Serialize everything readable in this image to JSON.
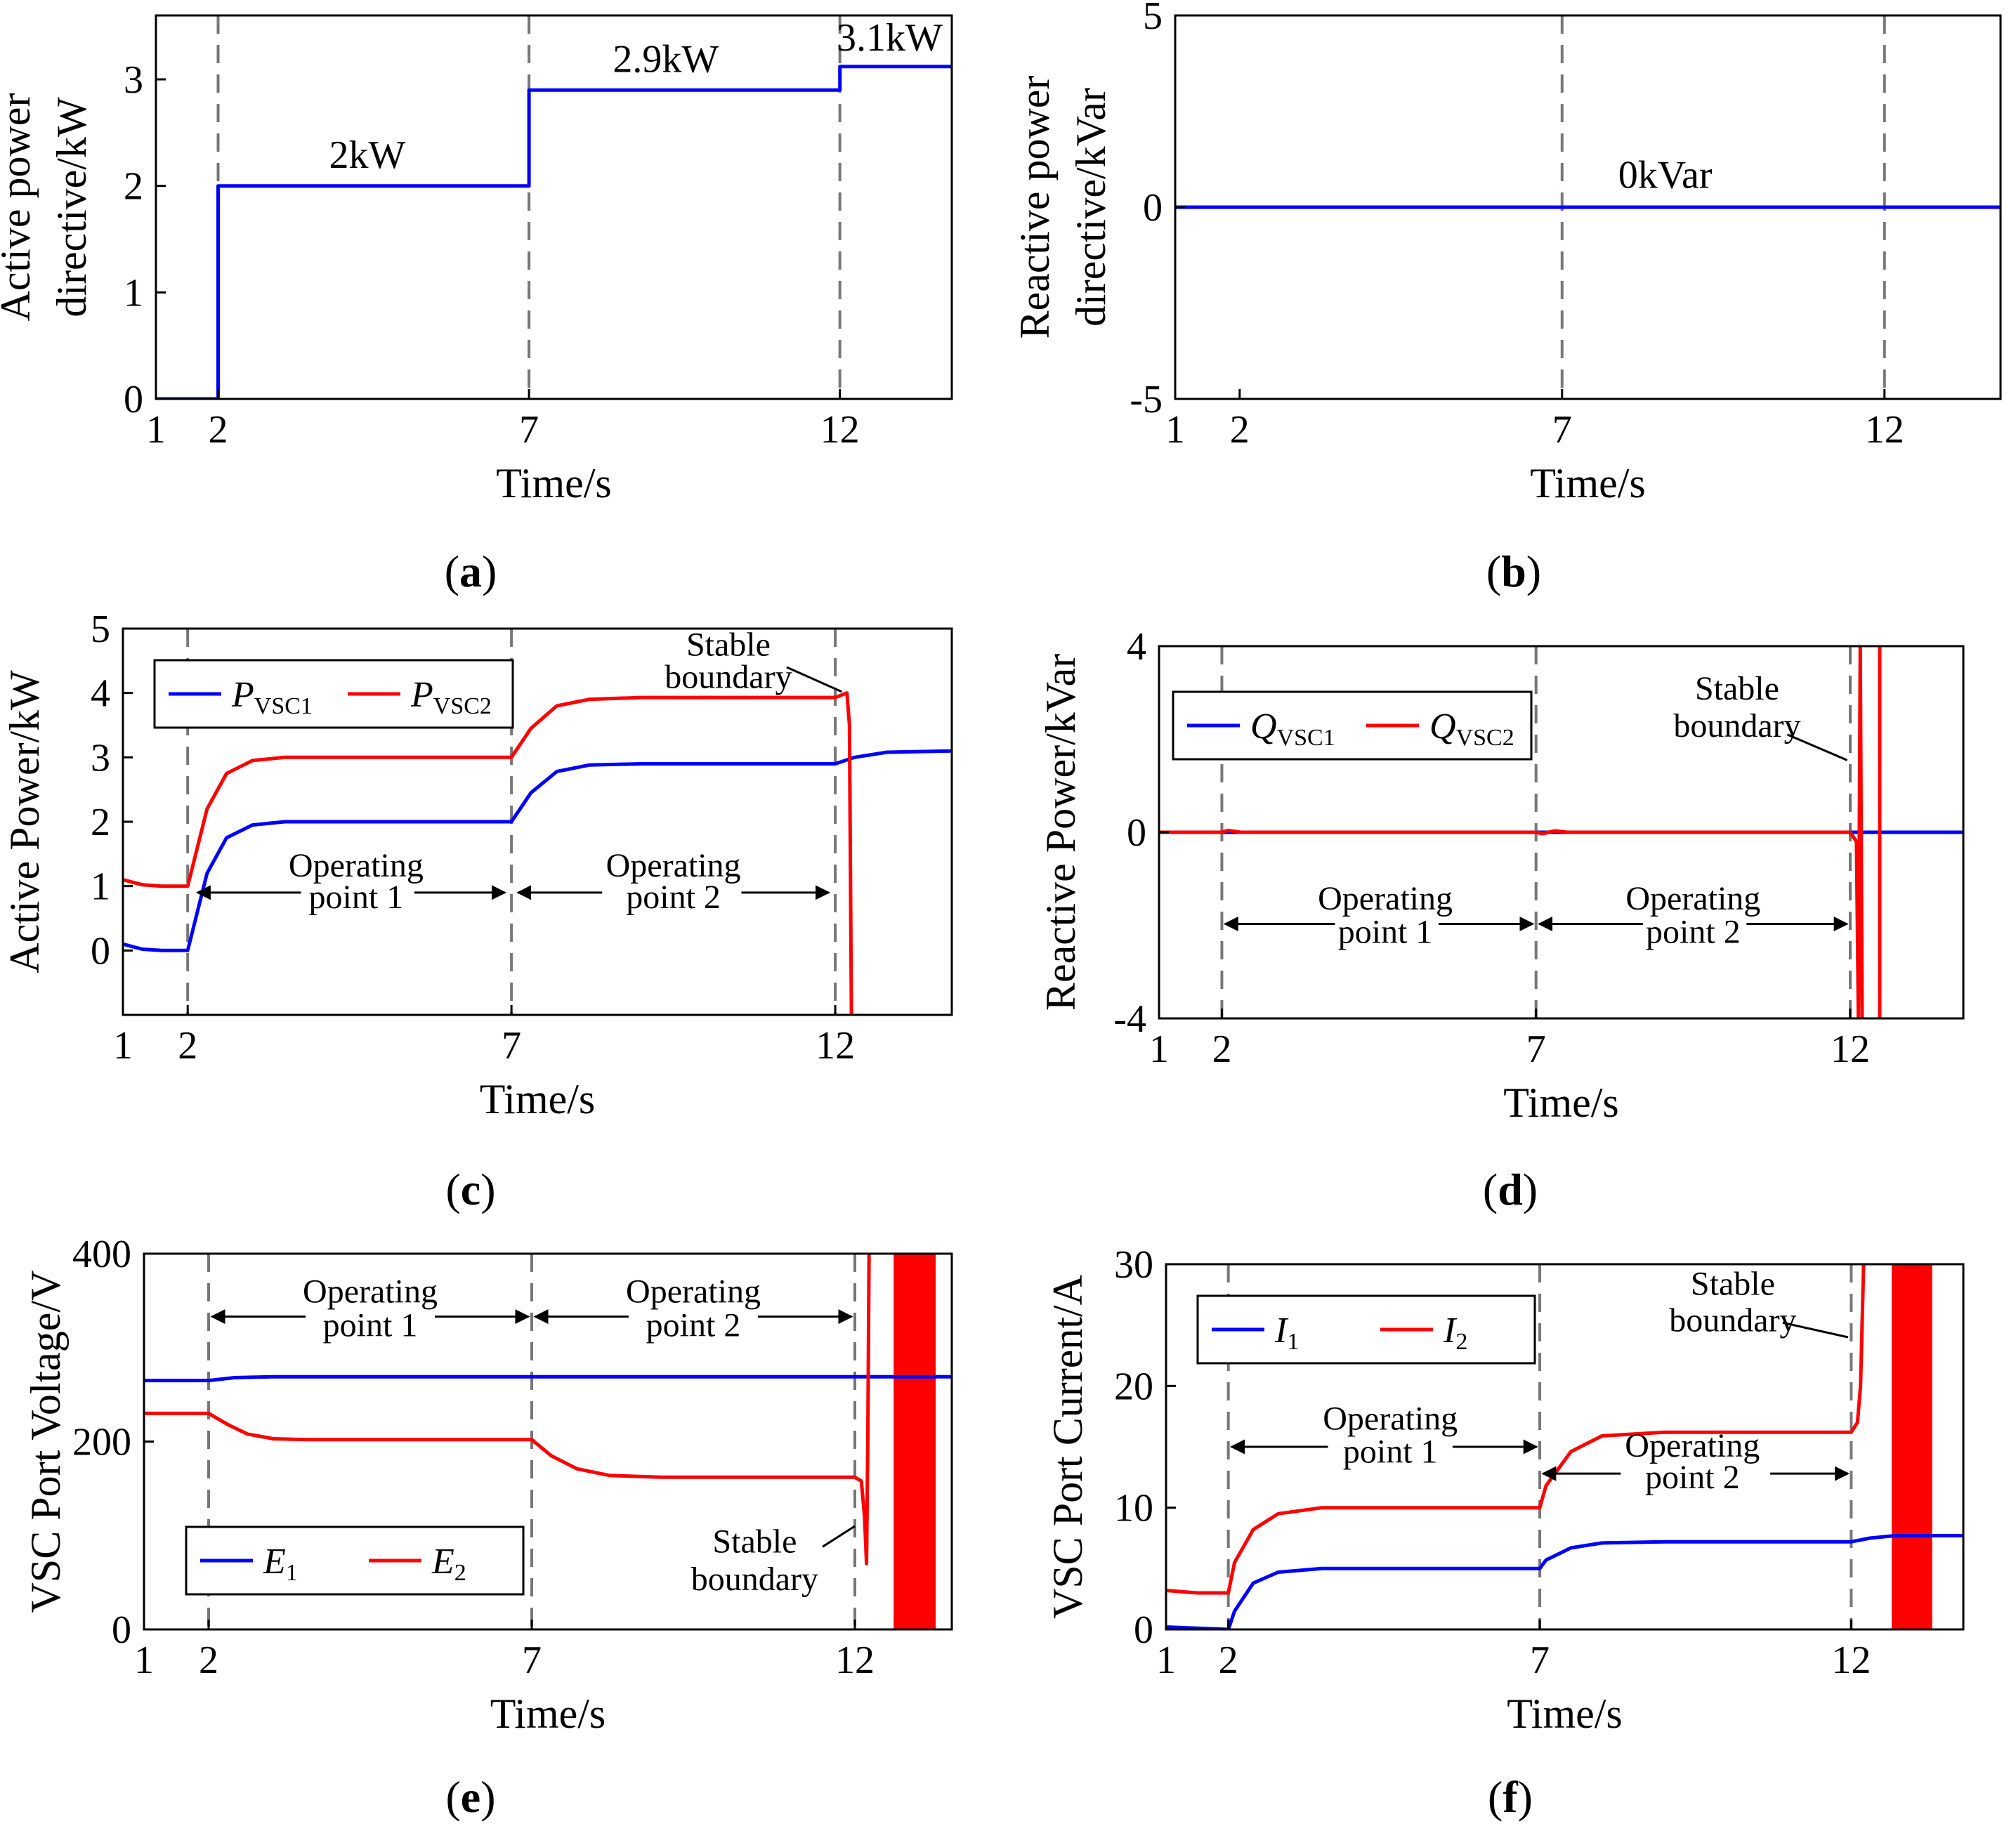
{
  "colors": {
    "blue": "#0000ff",
    "red": "#ff0000",
    "vline": "#777777"
  },
  "chart_data": [
    {
      "id": "a",
      "type": "line",
      "caption": "a",
      "xlabel": "Time/s",
      "ylabel_lines": [
        "Active power",
        "directive/kW"
      ],
      "xlim": [
        1,
        13.8
      ],
      "ylim": [
        0,
        3.6
      ],
      "xticks": [
        1,
        2,
        7,
        12
      ],
      "yticks": [
        0,
        1,
        2,
        3
      ],
      "vlines": [
        2,
        7,
        12
      ],
      "series": [
        {
          "name": "P_ref",
          "color": "blue",
          "points": [
            [
              1,
              0
            ],
            [
              2,
              0
            ],
            [
              2,
              2
            ],
            [
              7,
              2
            ],
            [
              7,
              2.9
            ],
            [
              12,
              2.9
            ],
            [
              12,
              3.12
            ],
            [
              13.8,
              3.12
            ]
          ]
        }
      ],
      "annotations": [
        {
          "text": "2kW",
          "x": 4.4,
          "y": 2.17
        },
        {
          "text": "2.9kW",
          "x": 9.2,
          "y": 3.07
        },
        {
          "text": "3.1kW",
          "x": 12.8,
          "y": 3.27
        }
      ]
    },
    {
      "id": "b",
      "type": "line",
      "caption": "b",
      "xlabel": "Time/s",
      "ylabel_lines": [
        "Reactive power",
        "directive/kVar"
      ],
      "xlim": [
        1,
        13.8
      ],
      "ylim": [
        -5,
        5
      ],
      "xticks": [
        1,
        2,
        7,
        12
      ],
      "yticks": [
        -5,
        0,
        5
      ],
      "vlines": [
        7,
        12
      ],
      "series": [
        {
          "name": "Q_ref",
          "color": "blue",
          "points": [
            [
              1,
              0
            ],
            [
              13.8,
              0
            ]
          ]
        }
      ],
      "annotations": [
        {
          "text": "0kVar",
          "x": 8.6,
          "y": 0.5
        }
      ]
    },
    {
      "id": "c",
      "type": "line",
      "caption": "c",
      "xlabel": "Time/s",
      "ylabel_lines": [
        "Active Power/kW"
      ],
      "xlim": [
        1,
        13.8
      ],
      "ylim": [
        -1,
        5
      ],
      "xticks": [
        1,
        2,
        7,
        12
      ],
      "yticks": [
        0,
        1,
        2,
        3,
        4,
        5
      ],
      "vlines": [
        2,
        7,
        12
      ],
      "legend": {
        "position": "top-left",
        "entries": [
          {
            "base": "P",
            "sub": "VSC1",
            "color": "blue"
          },
          {
            "base": "P",
            "sub": "VSC2",
            "color": "red"
          }
        ]
      },
      "series": [
        {
          "name": "P_VSC1",
          "color": "blue",
          "points": [
            [
              1,
              0.1
            ],
            [
              1.3,
              0.02
            ],
            [
              1.6,
              0
            ],
            [
              2,
              0
            ],
            [
              2.3,
              1.2
            ],
            [
              2.6,
              1.75
            ],
            [
              3,
              1.95
            ],
            [
              3.5,
              2
            ],
            [
              7,
              2
            ],
            [
              7.3,
              2.45
            ],
            [
              7.7,
              2.78
            ],
            [
              8.2,
              2.88
            ],
            [
              9,
              2.9
            ],
            [
              12,
              2.9
            ],
            [
              12.3,
              3.0
            ],
            [
              12.8,
              3.08
            ],
            [
              13.8,
              3.1
            ]
          ]
        },
        {
          "name": "P_VSC2",
          "color": "red",
          "points": [
            [
              1,
              1.1
            ],
            [
              1.3,
              1.02
            ],
            [
              1.6,
              1
            ],
            [
              2,
              1
            ],
            [
              2.3,
              2.2
            ],
            [
              2.6,
              2.75
            ],
            [
              3,
              2.95
            ],
            [
              3.5,
              3
            ],
            [
              7,
              3
            ],
            [
              7.3,
              3.45
            ],
            [
              7.7,
              3.8
            ],
            [
              8.2,
              3.9
            ],
            [
              9,
              3.93
            ],
            [
              12,
              3.93
            ],
            [
              12.18,
              4.0
            ],
            [
              12.22,
              3.5
            ],
            [
              12.25,
              -1.0
            ]
          ]
        }
      ],
      "annotations": [
        {
          "text": "Operating",
          "x": 4.6,
          "y": 1.15
        },
        {
          "text": "point 1",
          "x": 4.6,
          "y": 0.66
        },
        {
          "text": "Operating",
          "x": 9.5,
          "y": 1.15
        },
        {
          "text": "point 2",
          "x": 9.5,
          "y": 0.66
        },
        {
          "text": "Stable",
          "x": 10.35,
          "y": 4.58
        },
        {
          "text": "boundary",
          "x": 10.35,
          "y": 4.08
        }
      ],
      "arrows": [
        {
          "x1": 3.75,
          "x2": 2.15,
          "y": 0.9
        },
        {
          "x1": 5.5,
          "x2": 6.9,
          "y": 0.9
        },
        {
          "x1": 8.4,
          "x2": 7.1,
          "y": 0.9
        },
        {
          "x1": 10.55,
          "x2": 11.9,
          "y": 0.9
        }
      ],
      "pointers": [
        {
          "x1": 11.25,
          "y1": 4.4,
          "x2": 12.1,
          "y2": 4.02
        }
      ]
    },
    {
      "id": "d",
      "type": "line",
      "caption": "d",
      "xlabel": "Time/s",
      "ylabel_lines": [
        "Reactive Power/kVar"
      ],
      "xlim": [
        1,
        13.8
      ],
      "ylim": [
        -4,
        4
      ],
      "xticks": [
        1,
        2,
        7,
        12
      ],
      "yticks": [
        -4,
        0,
        4
      ],
      "vlines": [
        2,
        7,
        12
      ],
      "legend": {
        "position": "top-left",
        "entries": [
          {
            "base": "Q",
            "sub": "VSC1",
            "color": "blue"
          },
          {
            "base": "Q",
            "sub": "VSC2",
            "color": "red"
          }
        ]
      },
      "series": [
        {
          "name": "Q_VSC1",
          "color": "blue",
          "points": [
            [
              1,
              0
            ],
            [
              13.8,
              0
            ]
          ]
        },
        {
          "name": "Q_VSC2",
          "color": "red",
          "points": [
            [
              1,
              0
            ],
            [
              2,
              0
            ],
            [
              2.1,
              0.04
            ],
            [
              2.3,
              0
            ],
            [
              7,
              0
            ],
            [
              7.1,
              -0.03
            ],
            [
              7.3,
              0.03
            ],
            [
              7.5,
              0
            ],
            [
              12,
              0
            ],
            [
              12.1,
              -0.2
            ],
            [
              12.13,
              -4
            ],
            [
              12.16,
              4
            ],
            [
              12.19,
              -4
            ]
          ]
        },
        {
          "name": "Q_VSC2_tail",
          "color": "red",
          "points": [
            [
              12.47,
              -4
            ],
            [
              12.47,
              4
            ]
          ]
        }
      ],
      "annotations": [
        {
          "text": "Operating",
          "x": 4.6,
          "y": -1.66
        },
        {
          "text": "point 1",
          "x": 4.6,
          "y": -2.38
        },
        {
          "text": "Operating",
          "x": 9.5,
          "y": -1.66
        },
        {
          "text": "point 2",
          "x": 9.5,
          "y": -2.38
        },
        {
          "text": "Stable",
          "x": 10.2,
          "y": 2.85
        },
        {
          "text": "boundary",
          "x": 10.2,
          "y": 2.05
        }
      ],
      "arrows": [
        {
          "x1": 3.8,
          "x2": 2.05,
          "y": -1.97
        },
        {
          "x1": 5.45,
          "x2": 6.95,
          "y": -1.97
        },
        {
          "x1": 8.7,
          "x2": 7.05,
          "y": -1.97
        },
        {
          "x1": 10.35,
          "x2": 11.95,
          "y": -1.97
        }
      ],
      "pointers": [
        {
          "x1": 11.0,
          "y1": 2.1,
          "x2": 11.95,
          "y2": 1.55
        }
      ]
    },
    {
      "id": "e",
      "type": "line",
      "caption": "e",
      "xlabel": "Time/s",
      "ylabel_lines": [
        "VSC Port Voltage/V"
      ],
      "xlim": [
        1,
        13.5
      ],
      "ylim": [
        0,
        400
      ],
      "xticks": [
        1,
        2,
        7,
        12
      ],
      "yticks": [
        0,
        200,
        400
      ],
      "vlines": [
        2,
        7,
        12
      ],
      "legend": {
        "position": "bottom-left",
        "entries": [
          {
            "base": "E",
            "sub": "1",
            "color": "blue"
          },
          {
            "base": "E",
            "sub": "2",
            "color": "red"
          }
        ]
      },
      "series": [
        {
          "name": "E1",
          "color": "blue",
          "points": [
            [
              1,
              265
            ],
            [
              2,
              265
            ],
            [
              2.4,
              268
            ],
            [
              3,
              269
            ],
            [
              13.5,
              269
            ]
          ]
        },
        {
          "name": "E2",
          "color": "red",
          "points": [
            [
              1,
              230
            ],
            [
              2,
              230
            ],
            [
              2.3,
              218
            ],
            [
              2.6,
              208
            ],
            [
              3,
              203
            ],
            [
              3.5,
              202
            ],
            [
              7,
              202
            ],
            [
              7.3,
              185
            ],
            [
              7.7,
              171
            ],
            [
              8.2,
              164
            ],
            [
              9,
              162
            ],
            [
              12,
              162
            ],
            [
              12.1,
              158
            ],
            [
              12.15,
              120
            ],
            [
              12.18,
              70
            ],
            [
              12.2,
              200
            ],
            [
              12.22,
              400
            ]
          ]
        }
      ],
      "fill_bands": [
        {
          "x1": 12.6,
          "x2": 13.25,
          "color": "red"
        }
      ],
      "annotations": [
        {
          "text": "Operating",
          "x": 4.5,
          "y": 348
        },
        {
          "text": "point 1",
          "x": 4.5,
          "y": 312
        },
        {
          "text": "Operating",
          "x": 9.5,
          "y": 348
        },
        {
          "text": "point 2",
          "x": 9.5,
          "y": 312
        },
        {
          "text": "Stable",
          "x": 10.45,
          "y": 82
        },
        {
          "text": "boundary",
          "x": 10.45,
          "y": 42
        }
      ],
      "arrows": [
        {
          "x1": 3.5,
          "x2": 2.05,
          "y": 333
        },
        {
          "x1": 5.5,
          "x2": 6.95,
          "y": 333
        },
        {
          "x1": 8.5,
          "x2": 7.05,
          "y": 333
        },
        {
          "x1": 10.5,
          "x2": 11.95,
          "y": 333
        }
      ],
      "pointers": [
        {
          "x1": 11.5,
          "y1": 88,
          "x2": 12.0,
          "y2": 110
        }
      ]
    },
    {
      "id": "f",
      "type": "line",
      "caption": "f",
      "xlabel": "Time/s",
      "ylabel_lines": [
        "VSC Port Current/A"
      ],
      "xlim": [
        1,
        13.8
      ],
      "ylim": [
        0,
        30
      ],
      "xticks": [
        1,
        2,
        7,
        12
      ],
      "yticks": [
        0,
        10,
        20,
        30
      ],
      "vlines": [
        2,
        7,
        12
      ],
      "legend": {
        "position": "top-left",
        "entries": [
          {
            "base": "I",
            "sub": "1",
            "color": "blue"
          },
          {
            "base": "I",
            "sub": "2",
            "color": "red"
          }
        ]
      },
      "series": [
        {
          "name": "I1",
          "color": "blue",
          "points": [
            [
              1,
              0.2
            ],
            [
              2,
              0
            ],
            [
              2.1,
              1.5
            ],
            [
              2.4,
              3.8
            ],
            [
              2.8,
              4.7
            ],
            [
              3.5,
              5
            ],
            [
              7,
              5
            ],
            [
              7.1,
              5.7
            ],
            [
              7.5,
              6.7
            ],
            [
              8,
              7.1
            ],
            [
              9,
              7.2
            ],
            [
              12,
              7.2
            ],
            [
              12.3,
              7.5
            ],
            [
              12.7,
              7.7
            ],
            [
              13.8,
              7.7
            ]
          ]
        },
        {
          "name": "I2",
          "color": "red",
          "points": [
            [
              1,
              3.2
            ],
            [
              1.5,
              3
            ],
            [
              2,
              3
            ],
            [
              2.1,
              5.5
            ],
            [
              2.4,
              8.2
            ],
            [
              2.8,
              9.5
            ],
            [
              3.5,
              10
            ],
            [
              7,
              10
            ],
            [
              7.1,
              11.8
            ],
            [
              7.5,
              14.6
            ],
            [
              8,
              15.9
            ],
            [
              9,
              16.2
            ],
            [
              12,
              16.2
            ],
            [
              12.1,
              17
            ],
            [
              12.15,
              20
            ],
            [
              12.2,
              30
            ]
          ]
        }
      ],
      "fill_bands": [
        {
          "x1": 12.65,
          "x2": 13.3,
          "color": "red"
        }
      ],
      "annotations": [
        {
          "text": "Operating",
          "x": 4.6,
          "y": 16.4
        },
        {
          "text": "point 1",
          "x": 4.6,
          "y": 13.7
        },
        {
          "text": "Operating",
          "x": 9.45,
          "y": 14.2
        },
        {
          "text": "point 2",
          "x": 9.45,
          "y": 11.6
        },
        {
          "text": "Stable",
          "x": 10.1,
          "y": 27.5
        },
        {
          "text": "boundary",
          "x": 10.1,
          "y": 24.5
        }
      ],
      "arrows": [
        {
          "x1": 3.6,
          "x2": 2.05,
          "y": 15
        },
        {
          "x1": 5.6,
          "x2": 6.95,
          "y": 15
        },
        {
          "x1": 8.3,
          "x2": 7.05,
          "y": 12.8
        },
        {
          "x1": 10.7,
          "x2": 11.95,
          "y": 12.8
        }
      ],
      "pointers": [
        {
          "x1": 10.9,
          "y1": 25.2,
          "x2": 11.95,
          "y2": 24.0
        }
      ]
    }
  ]
}
